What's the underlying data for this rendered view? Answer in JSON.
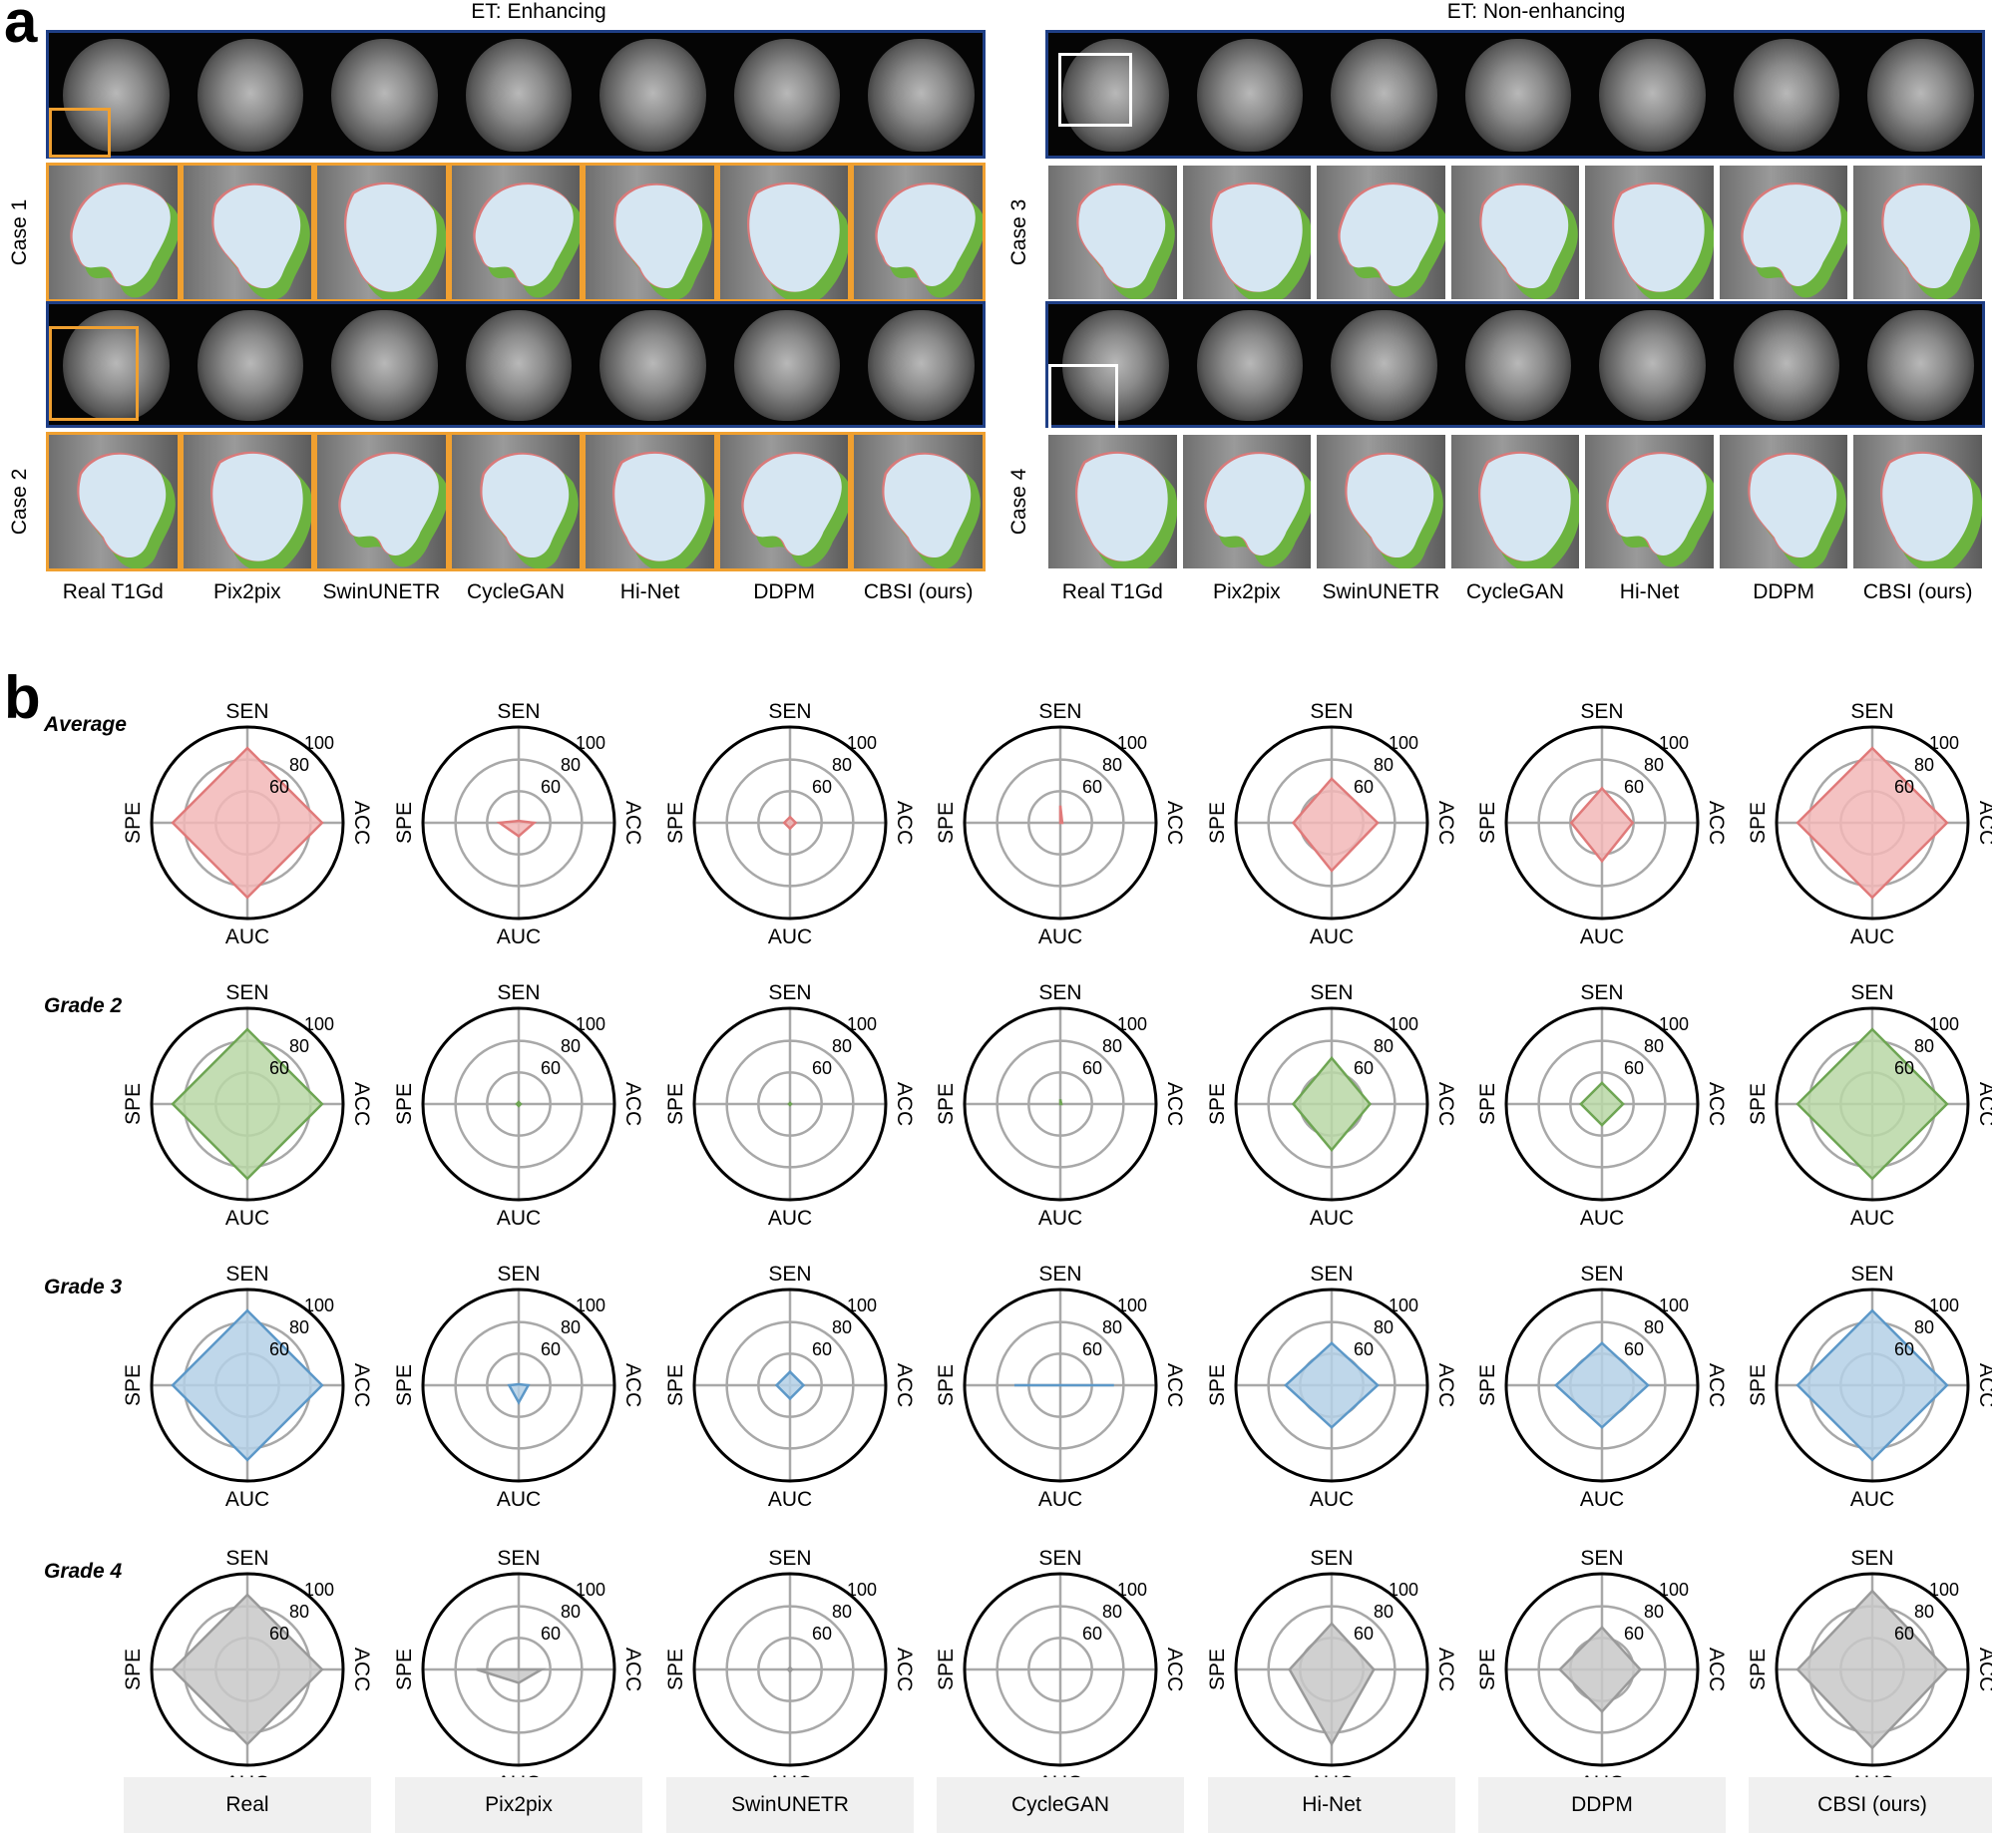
{
  "panel_a": {
    "letter": "a",
    "left_title": "ET: Enhancing",
    "right_title": "ET: Non-enhancing",
    "cases_left": [
      "Case 1",
      "Case 2"
    ],
    "cases_right": [
      "Case 3",
      "Case 4"
    ],
    "methods": [
      "Real T1Gd",
      "Pix2pix",
      "SwinUNETR",
      "CycleGAN",
      "Hi-Net",
      "DDPM",
      "CBSI (ours)"
    ],
    "legend_colors": {
      "overlap": "#d6e6f2",
      "missed": "#d97a7a",
      "false_positive": "#6cb33f"
    },
    "frame_colors": {
      "strip_border": "#1f3f86",
      "left_crop_border": "#f0a030",
      "right_crop_border": "#ffffff"
    }
  },
  "panel_b": {
    "letter": "b",
    "axes": {
      "top": "SEN",
      "right": "ACC",
      "bottom": "AUC",
      "left": "SPE"
    },
    "ring_labels": [
      "60",
      "80",
      "100"
    ],
    "columns": [
      "Real",
      "Pix2pix",
      "SwinUNETR",
      "CycleGAN",
      "Hi-Net",
      "DDPM",
      "CBSI (ours)"
    ],
    "rows": [
      {
        "label": "Average",
        "color_fill": "#f2b7b7",
        "color_line": "#e07a7a"
      },
      {
        "label": "Grade 2",
        "color_fill": "#b9d7a6",
        "color_line": "#6ea553"
      },
      {
        "label": "Grade 3",
        "color_fill": "#b4d0e6",
        "color_line": "#5c98c8"
      },
      {
        "label": "Grade 4",
        "color_fill": "#c8c8c8",
        "color_line": "#9a9a9a"
      }
    ]
  },
  "chart_data": {
    "type": "radar",
    "axes": [
      "SEN",
      "ACC",
      "AUC",
      "SPE"
    ],
    "radial_ticks": [
      60,
      80,
      100
    ],
    "columns": [
      "Real",
      "Pix2pix",
      "SwinUNETR",
      "CycleGAN",
      "Hi-Net",
      "DDPM",
      "CBSI (ours)"
    ],
    "rows": [
      "Average",
      "Grade 2",
      "Grade 3",
      "Grade 4"
    ],
    "values": {
      "Average": [
        [
          0.78,
          0.78,
          0.78,
          0.78
        ],
        [
          0.02,
          0.16,
          0.14,
          0.2
        ],
        [
          0.06,
          0.06,
          0.06,
          0.06
        ],
        [
          0.18,
          0.02,
          0.0,
          0.0
        ],
        [
          0.46,
          0.48,
          0.5,
          0.4
        ],
        [
          0.36,
          0.32,
          0.4,
          0.32
        ],
        [
          0.78,
          0.78,
          0.78,
          0.78
        ]
      ],
      "Grade 2": [
        [
          0.78,
          0.78,
          0.78,
          0.78
        ],
        [
          0.02,
          0.02,
          0.02,
          0.02
        ],
        [
          0.01,
          0.01,
          0.01,
          0.01
        ],
        [
          0.05,
          0.01,
          0.0,
          0.0
        ],
        [
          0.48,
          0.4,
          0.48,
          0.4
        ],
        [
          0.22,
          0.22,
          0.22,
          0.22
        ],
        [
          0.78,
          0.78,
          0.78,
          0.78
        ]
      ],
      "Grade 3": [
        [
          0.78,
          0.78,
          0.78,
          0.78
        ],
        [
          0.01,
          0.1,
          0.18,
          0.1
        ],
        [
          0.14,
          0.14,
          0.14,
          0.14
        ],
        [
          0.0,
          0.56,
          0.0,
          0.48
        ],
        [
          0.44,
          0.48,
          0.44,
          0.48
        ],
        [
          0.44,
          0.48,
          0.44,
          0.48
        ],
        [
          0.78,
          0.78,
          0.78,
          0.78
        ]
      ],
      "Grade 4": [
        [
          0.78,
          0.78,
          0.78,
          0.78
        ],
        [
          0.0,
          0.24,
          0.14,
          0.44
        ],
        [
          0.02,
          0.02,
          0.02,
          0.02
        ],
        [
          0.0,
          0.0,
          0.0,
          0.0
        ],
        [
          0.48,
          0.44,
          0.78,
          0.44
        ],
        [
          0.44,
          0.4,
          0.44,
          0.44
        ],
        [
          0.82,
          0.78,
          0.82,
          0.78
        ]
      ]
    }
  }
}
